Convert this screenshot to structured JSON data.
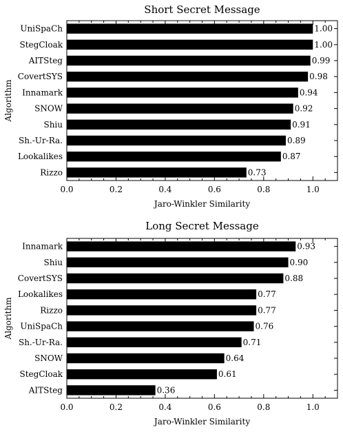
{
  "chart_data": [
    {
      "type": "bar",
      "orientation": "horizontal",
      "title": "Short Secret Message",
      "xlabel": "Jaro-Winkler Similarity",
      "ylabel": "Algorithm",
      "xlim": [
        0,
        1.1
      ],
      "xticks": [
        "0.0",
        "0.2",
        "0.4",
        "0.6",
        "0.8",
        "1.0"
      ],
      "categories": [
        "UniSpaCh",
        "StegCloak",
        "AITSteg",
        "CovertSYS",
        "Innamark",
        "SNOW",
        "Shiu",
        "Sh.-Ur-Ra.",
        "Lookalikes",
        "Rizzo"
      ],
      "values": [
        1.0,
        1.0,
        0.99,
        0.98,
        0.94,
        0.92,
        0.91,
        0.89,
        0.87,
        0.73
      ],
      "value_labels": [
        "1.00",
        "1.00",
        "0.99",
        "0.98",
        "0.94",
        "0.92",
        "0.91",
        "0.89",
        "0.87",
        "0.73"
      ],
      "bar_color": "#000000"
    },
    {
      "type": "bar",
      "orientation": "horizontal",
      "title": "Long Secret Message",
      "xlabel": "Jaro-Winkler Similarity",
      "ylabel": "Algorithm",
      "xlim": [
        0,
        1.1
      ],
      "xticks": [
        "0.0",
        "0.2",
        "0.4",
        "0.6",
        "0.8",
        "1.0"
      ],
      "categories": [
        "Innamark",
        "Shiu",
        "CovertSYS",
        "Lookalikes",
        "Rizzo",
        "UniSpaCh",
        "Sh.-Ur-Ra.",
        "SNOW",
        "StegCloak",
        "AITSteg"
      ],
      "values": [
        0.93,
        0.9,
        0.88,
        0.77,
        0.77,
        0.76,
        0.71,
        0.64,
        0.61,
        0.36
      ],
      "value_labels": [
        "0.93",
        "0.90",
        "0.88",
        "0.77",
        "0.77",
        "0.76",
        "0.71",
        "0.64",
        "0.61",
        "0.36"
      ],
      "bar_color": "#000000"
    }
  ]
}
